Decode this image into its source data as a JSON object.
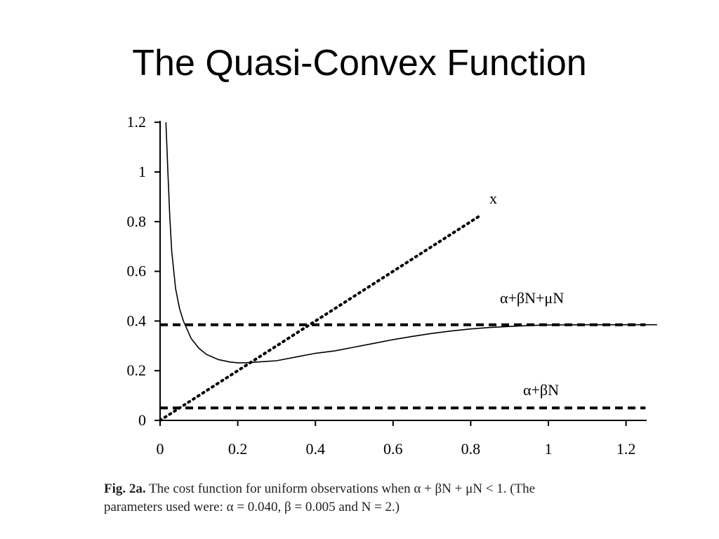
{
  "title": "The Quasi-Convex Function",
  "caption": {
    "fig_label": "Fig. 2a.",
    "line1": "The cost function for uniform observations when α + βN + μN < 1. (The",
    "line2": "parameters used were: α = 0.040, β = 0.005 and N = 2.)"
  },
  "chart_data": {
    "type": "line",
    "title": "",
    "xlabel": "",
    "ylabel": "",
    "xlim": [
      0,
      1.25
    ],
    "ylim": [
      0,
      1.2
    ],
    "x_ticks": [
      "0",
      "0.2",
      "0.4",
      "0.6",
      "0.8",
      "1",
      "1.2"
    ],
    "y_ticks": [
      "0",
      "0.2",
      "0.4",
      "0.6",
      "0.8",
      "1",
      "1.2"
    ],
    "grid": false,
    "series": [
      {
        "name": "x",
        "style": "dotted",
        "x": [
          0,
          0.82
        ],
        "y": [
          0,
          0.82
        ]
      },
      {
        "name": "α+βN+μN",
        "style": "dashed",
        "x": [
          0,
          1.25
        ],
        "y": [
          0.385,
          0.385
        ]
      },
      {
        "name": "α+βN",
        "style": "dashed",
        "x": [
          0,
          1.25
        ],
        "y": [
          0.05,
          0.05
        ]
      },
      {
        "name": "",
        "style": "solid",
        "x": [
          0.015,
          0.02,
          0.025,
          0.03,
          0.04,
          0.05,
          0.06,
          0.08,
          0.1,
          0.12,
          0.15,
          0.18,
          0.2,
          0.22,
          0.25,
          0.3,
          0.35,
          0.4,
          0.45,
          0.5,
          0.55,
          0.6,
          0.65,
          0.7,
          0.75,
          0.8,
          0.85,
          0.9,
          0.95,
          1.0,
          1.1,
          1.2,
          1.28
        ],
        "y": [
          1.2,
          1.0,
          0.82,
          0.68,
          0.53,
          0.45,
          0.4,
          0.33,
          0.29,
          0.265,
          0.245,
          0.235,
          0.232,
          0.232,
          0.235,
          0.24,
          0.255,
          0.27,
          0.28,
          0.295,
          0.31,
          0.325,
          0.338,
          0.35,
          0.36,
          0.368,
          0.374,
          0.378,
          0.382,
          0.384,
          0.385,
          0.385,
          0.385
        ]
      }
    ]
  }
}
